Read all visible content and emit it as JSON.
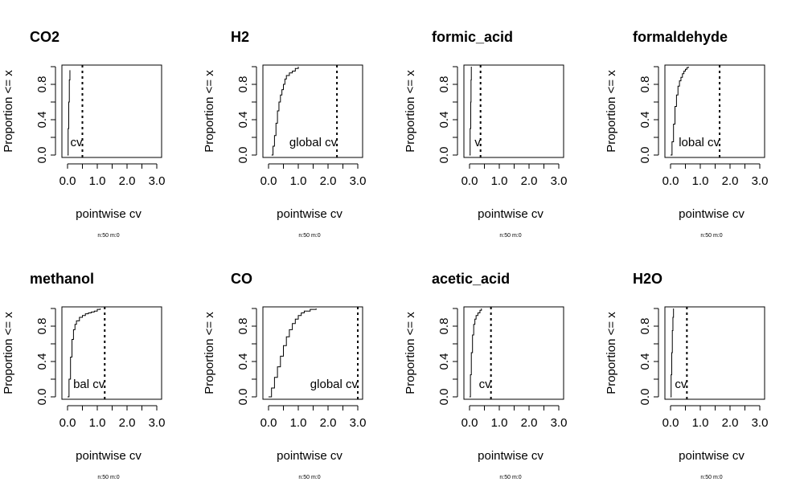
{
  "figure": {
    "background": "#ffffff",
    "ink": "#000000"
  },
  "chart_data": [
    {
      "type": "line",
      "title": "CO2",
      "xlabel": "pointwise cv",
      "ylabel": "Proportion <= x",
      "xlim": [
        0,
        3.3
      ],
      "ylim": [
        0,
        1.05
      ],
      "xticks": [
        0,
        0.5,
        1,
        1.5,
        2,
        2.5,
        3
      ],
      "xtick_labels": [
        "0.0",
        "",
        "1.0",
        "",
        "2.0",
        "",
        "3.0"
      ],
      "yticks": [
        0,
        0.2,
        0.4,
        0.6,
        0.8,
        1.0
      ],
      "ytick_labels": [
        "0.0",
        "",
        "0.4",
        "",
        "0.8",
        ""
      ],
      "series": [
        {
          "x": [
            0.0,
            0.02,
            0.04,
            0.06,
            0.08
          ],
          "y": [
            0.0,
            0.3,
            0.6,
            0.85,
            0.96
          ]
        }
      ],
      "global_cv": 0.5,
      "annotation": "cv",
      "subtitle": "n:50 m:0"
    },
    {
      "type": "line",
      "title": "H2",
      "xlabel": "pointwise cv",
      "ylabel": "Proportion <= x",
      "xlim": [
        0,
        3.3
      ],
      "ylim": [
        0,
        1.05
      ],
      "xticks": [
        0,
        0.5,
        1,
        1.5,
        2,
        2.5,
        3
      ],
      "xtick_labels": [
        "0.0",
        "",
        "1.0",
        "",
        "2.0",
        "",
        "3.0"
      ],
      "yticks": [
        0,
        0.2,
        0.4,
        0.6,
        0.8,
        1.0
      ],
      "ytick_labels": [
        "0.0",
        "",
        "0.4",
        "",
        "0.8",
        ""
      ],
      "series": [
        {
          "x": [
            0.1,
            0.15,
            0.2,
            0.25,
            0.3,
            0.35,
            0.4,
            0.45,
            0.5,
            0.55,
            0.6,
            0.7,
            0.8,
            0.9,
            1.0
          ],
          "y": [
            0.0,
            0.1,
            0.22,
            0.36,
            0.5,
            0.6,
            0.68,
            0.74,
            0.8,
            0.86,
            0.9,
            0.93,
            0.95,
            0.98,
            1.0
          ]
        }
      ],
      "global_cv": 2.3,
      "annotation": "global cv",
      "subtitle": "n:50 m:0"
    },
    {
      "type": "line",
      "title": "formic_acid",
      "xlabel": "pointwise cv",
      "ylabel": "Proportion <= x",
      "xlim": [
        0,
        3.3
      ],
      "ylim": [
        0,
        1.05
      ],
      "xticks": [
        0,
        0.5,
        1,
        1.5,
        2,
        2.5,
        3
      ],
      "xtick_labels": [
        "0.0",
        "",
        "1.0",
        "",
        "2.0",
        "",
        "3.0"
      ],
      "yticks": [
        0,
        0.2,
        0.4,
        0.6,
        0.8,
        1.0
      ],
      "ytick_labels": [
        "0.0",
        "",
        "0.4",
        "",
        "0.8",
        ""
      ],
      "series": [
        {
          "x": [
            0.0,
            0.02,
            0.04,
            0.05,
            0.06
          ],
          "y": [
            0.0,
            0.3,
            0.6,
            0.85,
            1.0
          ]
        }
      ],
      "global_cv": 0.37,
      "annotation": "v",
      "subtitle": "n:50 m:0"
    },
    {
      "type": "line",
      "title": "formaldehyde",
      "xlabel": "pointwise cv",
      "ylabel": "Proportion <= x",
      "xlim": [
        0,
        3.3
      ],
      "ylim": [
        0,
        1.05
      ],
      "xticks": [
        0,
        0.5,
        1,
        1.5,
        2,
        2.5,
        3
      ],
      "xtick_labels": [
        "0.0",
        "",
        "1.0",
        "",
        "2.0",
        "",
        "3.0"
      ],
      "yticks": [
        0,
        0.2,
        0.4,
        0.6,
        0.8,
        1.0
      ],
      "ytick_labels": [
        "0.0",
        "",
        "0.4",
        "",
        "0.8",
        ""
      ],
      "series": [
        {
          "x": [
            0.0,
            0.05,
            0.1,
            0.15,
            0.2,
            0.25,
            0.3,
            0.35,
            0.4,
            0.45,
            0.5,
            0.55,
            0.6
          ],
          "y": [
            0.0,
            0.15,
            0.35,
            0.55,
            0.68,
            0.78,
            0.84,
            0.88,
            0.92,
            0.95,
            0.97,
            0.99,
            1.0
          ]
        }
      ],
      "global_cv": 1.65,
      "annotation": "lobal cv",
      "subtitle": "n:50 m:0"
    },
    {
      "type": "line",
      "title": "methanol",
      "xlabel": "pointwise cv",
      "ylabel": "Proportion <= x",
      "xlim": [
        0,
        3.3
      ],
      "ylim": [
        0,
        1.05
      ],
      "xticks": [
        0,
        0.5,
        1,
        1.5,
        2,
        2.5,
        3
      ],
      "xtick_labels": [
        "0.0",
        "",
        "1.0",
        "",
        "2.0",
        "",
        "3.0"
      ],
      "yticks": [
        0,
        0.2,
        0.4,
        0.6,
        0.8,
        1.0
      ],
      "ytick_labels": [
        "0.0",
        "",
        "0.4",
        "",
        "0.8",
        ""
      ],
      "series": [
        {
          "x": [
            0.0,
            0.05,
            0.1,
            0.15,
            0.2,
            0.25,
            0.3,
            0.4,
            0.5,
            0.6,
            0.7,
            0.8,
            0.9,
            1.0,
            1.1
          ],
          "y": [
            0.0,
            0.2,
            0.45,
            0.65,
            0.76,
            0.82,
            0.86,
            0.9,
            0.92,
            0.94,
            0.95,
            0.96,
            0.97,
            0.99,
            1.0
          ]
        }
      ],
      "global_cv": 1.25,
      "annotation": "bal cv",
      "subtitle": "n:50 m:0"
    },
    {
      "type": "line",
      "title": "CO",
      "xlabel": "pointwise cv",
      "ylabel": "Proportion <= x",
      "xlim": [
        0,
        3.3
      ],
      "ylim": [
        0,
        1.05
      ],
      "xticks": [
        0,
        0.5,
        1,
        1.5,
        2,
        2.5,
        3
      ],
      "xtick_labels": [
        "0.0",
        "",
        "1.0",
        "",
        "2.0",
        "",
        "3.0"
      ],
      "yticks": [
        0,
        0.2,
        0.4,
        0.6,
        0.8,
        1.0
      ],
      "ytick_labels": [
        "0.0",
        "",
        "0.4",
        "",
        "0.8",
        ""
      ],
      "series": [
        {
          "x": [
            0.0,
            0.1,
            0.2,
            0.3,
            0.4,
            0.5,
            0.6,
            0.7,
            0.8,
            0.9,
            1.0,
            1.1,
            1.2,
            1.4,
            1.6
          ],
          "y": [
            0.0,
            0.1,
            0.22,
            0.34,
            0.46,
            0.58,
            0.68,
            0.76,
            0.83,
            0.88,
            0.92,
            0.95,
            0.97,
            0.99,
            1.0
          ]
        }
      ],
      "global_cv": 3.0,
      "annotation": "global cv",
      "subtitle": "n:50 m:0"
    },
    {
      "type": "line",
      "title": "acetic_acid",
      "xlabel": "pointwise cv",
      "ylabel": "Proportion <= x",
      "xlim": [
        0,
        3.3
      ],
      "ylim": [
        0,
        1.05
      ],
      "xticks": [
        0,
        0.5,
        1,
        1.5,
        2,
        2.5,
        3
      ],
      "xtick_labels": [
        "0.0",
        "",
        "1.0",
        "",
        "2.0",
        "",
        "3.0"
      ],
      "yticks": [
        0,
        0.2,
        0.4,
        0.6,
        0.8,
        1.0
      ],
      "ytick_labels": [
        "0.0",
        "",
        "0.4",
        "",
        "0.8",
        ""
      ],
      "series": [
        {
          "x": [
            0.0,
            0.03,
            0.06,
            0.1,
            0.14,
            0.18,
            0.22,
            0.28,
            0.35,
            0.4
          ],
          "y": [
            0.0,
            0.25,
            0.5,
            0.7,
            0.82,
            0.88,
            0.92,
            0.95,
            0.98,
            1.0
          ]
        }
      ],
      "global_cv": 0.72,
      "annotation": "cv",
      "subtitle": "n:50 m:0"
    },
    {
      "type": "line",
      "title": "H2O",
      "xlabel": "pointwise cv",
      "ylabel": "Proportion <= x",
      "xlim": [
        0,
        3.3
      ],
      "ylim": [
        0,
        1.05
      ],
      "xticks": [
        0,
        0.5,
        1,
        1.5,
        2,
        2.5,
        3
      ],
      "xtick_labels": [
        "0.0",
        "",
        "1.0",
        "",
        "2.0",
        "",
        "3.0"
      ],
      "yticks": [
        0,
        0.2,
        0.4,
        0.6,
        0.8,
        1.0
      ],
      "ytick_labels": [
        "0.0",
        "",
        "0.4",
        "",
        "0.8",
        ""
      ],
      "series": [
        {
          "x": [
            0.0,
            0.02,
            0.04,
            0.06,
            0.08,
            0.1
          ],
          "y": [
            0.0,
            0.25,
            0.5,
            0.75,
            0.9,
            1.0
          ]
        }
      ],
      "global_cv": 0.55,
      "annotation": "cv",
      "subtitle": "n:50 m:0"
    }
  ]
}
